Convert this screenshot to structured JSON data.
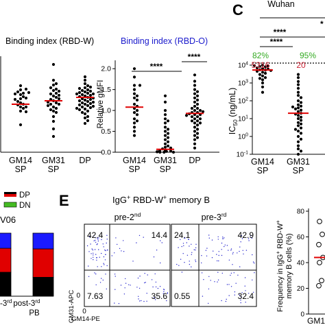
{
  "panel_labels": {
    "c": "C",
    "e": "E"
  },
  "pvals": {
    "p4": "****",
    "star": "*"
  },
  "legend_bars": [
    {
      "label": "DP",
      "color": "#e00000"
    },
    {
      "label": "DN",
      "color": "#44bb22"
    }
  ],
  "stack_fragment": "V06",
  "stack_xlabel": {
    "t1": "-3",
    "t1sup": "rd",
    "t2": "post-3",
    "t2sup": "rd",
    "pb": "PB"
  },
  "panelE": {
    "title": "IgG",
    "title_sup1": "+",
    "title_mid": " RBD-W",
    "title_sup2": "+",
    "title_end": " memory B",
    "facs_left": {
      "title": "pre-2",
      "title_sup": "nd",
      "q": {
        "ul": "42.4",
        "ur": "14.4",
        "ll": "7.63",
        "lr": "35.6"
      }
    },
    "facs_right": {
      "title": "pre-3",
      "title_sup": "rd",
      "q": {
        "ul": "24.1",
        "ur": "42.9",
        "ll": "0.55",
        "lr": "32.4"
      }
    },
    "xaxis": "GM14-PE",
    "yaxis": "GM31-APC",
    "ticks": {
      "zero": "0"
    },
    "freq_ylabel": {
      "line1": "Frequency in IgG",
      "line1_sup": "+",
      "line1_mid": " RBD-W",
      "line1_sup2": "+",
      "line2": "memory B cells (%)"
    },
    "freq_ticks": [
      "0",
      "20",
      "40",
      "60",
      "80"
    ],
    "freq_xlabel": "GM1"
  },
  "chart_data": [
    {
      "type": "scatter",
      "title": "Binding index (RBD-W)",
      "categories": [
        "GM14\nSP",
        "GM31\nSP",
        "DP"
      ],
      "cat_lines": [
        [
          "GM14",
          "SP"
        ],
        [
          "GM31",
          "SP"
        ],
        [
          "DP"
        ]
      ],
      "series": [
        {
          "values": [
            0.66,
            0.84,
            0.86,
            0.7,
            0.91,
            0.78,
            0.97,
            0.85,
            0.72,
            0.6,
            0.4,
            0.74,
            0.88,
            0.79,
            0.92,
            0.66,
            0.81,
            0.69,
            0.87,
            0.59,
            0.77,
            0.64
          ]
        },
        {
          "values": [
            1.28,
            1.05,
            0.98,
            0.9,
            0.86,
            0.82,
            0.75,
            0.72,
            0.66,
            0.6,
            0.52,
            0.45,
            0.34,
            0.23,
            1.0,
            0.92,
            0.8,
            0.77,
            0.7,
            0.64,
            0.58,
            0.94,
            0.83,
            0.7,
            0.78,
            0.62,
            0.89,
            0.73,
            0.85,
            0.68
          ]
        },
        {
          "values": [
            1.1,
            1.05,
            1.0,
            0.97,
            0.94,
            0.91,
            0.88,
            0.86,
            0.84,
            0.82,
            0.8,
            0.78,
            0.76,
            0.74,
            0.72,
            0.7,
            0.68,
            0.66,
            0.63,
            0.6,
            0.56,
            0.5,
            0.46,
            0.42,
            0.95,
            0.89,
            0.85,
            0.81,
            0.77,
            0.73,
            0.69,
            0.65,
            0.62,
            0.58,
            0.52,
            0.9,
            0.83,
            0.79,
            0.75,
            0.71,
            0.67,
            0.87,
            0.93,
            0.64,
            0.85
          ]
        }
      ],
      "medians": [
        0.7,
        0.75,
        0.8
      ],
      "ylim": [
        0,
        1.4
      ]
    },
    {
      "type": "scatter",
      "title": "Binding index (RBD-O)",
      "ylabel": "Relative gMFI",
      "yticks": [
        "0.0",
        "0.5",
        "1.0",
        "1.5",
        "2.0"
      ],
      "categories": [
        "GM14\nSP",
        "GM31\nSP",
        "DP"
      ],
      "cat_lines": [
        [
          "GM14",
          "SP"
        ],
        [
          "GM31",
          "SP"
        ],
        [
          "DP"
        ]
      ],
      "series": [
        {
          "values": [
            2.0,
            1.8,
            1.6,
            1.6,
            1.5,
            1.4,
            1.35,
            1.3,
            1.25,
            1.15,
            1.1,
            1.05,
            1.0,
            0.95,
            0.9,
            0.8,
            0.75,
            0.7,
            0.6,
            0.5,
            0.4
          ]
        },
        {
          "values": [
            1.35,
            1.2,
            1.0,
            0.9,
            0.8,
            0.75,
            0.7,
            0.6,
            0.55,
            0.5,
            0.45,
            0.4,
            0.35,
            0.3,
            0.25,
            0.2,
            0.15,
            0.12,
            0.1,
            0.08,
            0.05,
            0.04,
            0.03,
            0.02,
            0.02,
            0.01,
            0.01,
            0.0,
            0.0,
            0.0
          ]
        },
        {
          "values": [
            1.85,
            1.7,
            1.6,
            1.5,
            1.45,
            1.4,
            1.35,
            1.3,
            1.25,
            1.2,
            1.15,
            1.1,
            1.05,
            1.0,
            1.0,
            0.95,
            0.95,
            0.9,
            0.9,
            0.85,
            0.85,
            0.8,
            0.8,
            0.75,
            0.75,
            0.7,
            0.7,
            0.65,
            0.6,
            0.55,
            0.5,
            0.45,
            0.4,
            0.35,
            0.3,
            0.2,
            0.1,
            1.05,
            0.92,
            0.88,
            0.97
          ]
        }
      ],
      "medians": [
        1.08,
        0.07,
        0.93
      ],
      "ylim": [
        0,
        2.2
      ],
      "annotation": "****"
    },
    {
      "type": "scatter",
      "title": "Wuhan",
      "ylabel": "IC50 (ng/mL)",
      "ylabel_main": "IC",
      "ylabel_sub": "50",
      "ylabel_unit": " (ng/mL)",
      "yscale": "log",
      "ytick_base": "10",
      "ytick_exps": [
        "-1",
        "0",
        "1",
        "2",
        "3",
        "4"
      ],
      "categories": [
        "GM14\nSP",
        "GM31\nSP"
      ],
      "cat_lines": [
        [
          "GM14",
          "SP"
        ],
        [
          "GM31",
          "SP"
        ]
      ],
      "percent_labels": [
        "82%",
        "95%"
      ],
      "median_labels": [
        "5316",
        "20"
      ],
      "series": [
        {
          "values": [
            10000,
            9000,
            8500,
            8000,
            7000,
            6500,
            6000,
            5500,
            5316,
            5000,
            4500,
            4000,
            3500,
            3000,
            2500,
            2000,
            1800,
            1500,
            1000,
            600,
            300,
            9500
          ]
        },
        {
          "values": [
            3000,
            2000,
            1200,
            800,
            500,
            300,
            200,
            150,
            100,
            80,
            60,
            50,
            40,
            35,
            30,
            25,
            20,
            18,
            15,
            12,
            10,
            8,
            6,
            5,
            4,
            3,
            2,
            1.5,
            1,
            0.7,
            0.5,
            0.3,
            0.2,
            0.1,
            0.15,
            2.5,
            45
          ]
        }
      ],
      "medians": [
        5316,
        20
      ],
      "ylim": [
        0.1,
        10000
      ]
    },
    {
      "type": "bar",
      "categories": [
        "-3rd",
        "post-3rd"
      ],
      "series": [
        {
          "name": "DN",
          "values": [
            0.0,
            0.0
          ]
        },
        {
          "values": [
            0.38,
            0.3
          ]
        },
        {
          "name": "DP",
          "values": [
            0.38,
            0.45
          ]
        },
        {
          "values": [
            0.24,
            0.25
          ]
        }
      ],
      "colors": [
        "#44bb22",
        "#000000",
        "#e00000",
        "#1a1aff"
      ],
      "ylim": [
        0,
        1
      ]
    },
    {
      "type": "scatter",
      "ylabel": "Frequency in IgG+ RBD-W+ memory B cells (%)",
      "categories": [
        "GM1"
      ],
      "series": [
        {
          "values": [
            72,
            62,
            54,
            44,
            40,
            26,
            22
          ]
        }
      ],
      "medians": [
        44
      ],
      "ylim": [
        0,
        80
      ]
    }
  ]
}
